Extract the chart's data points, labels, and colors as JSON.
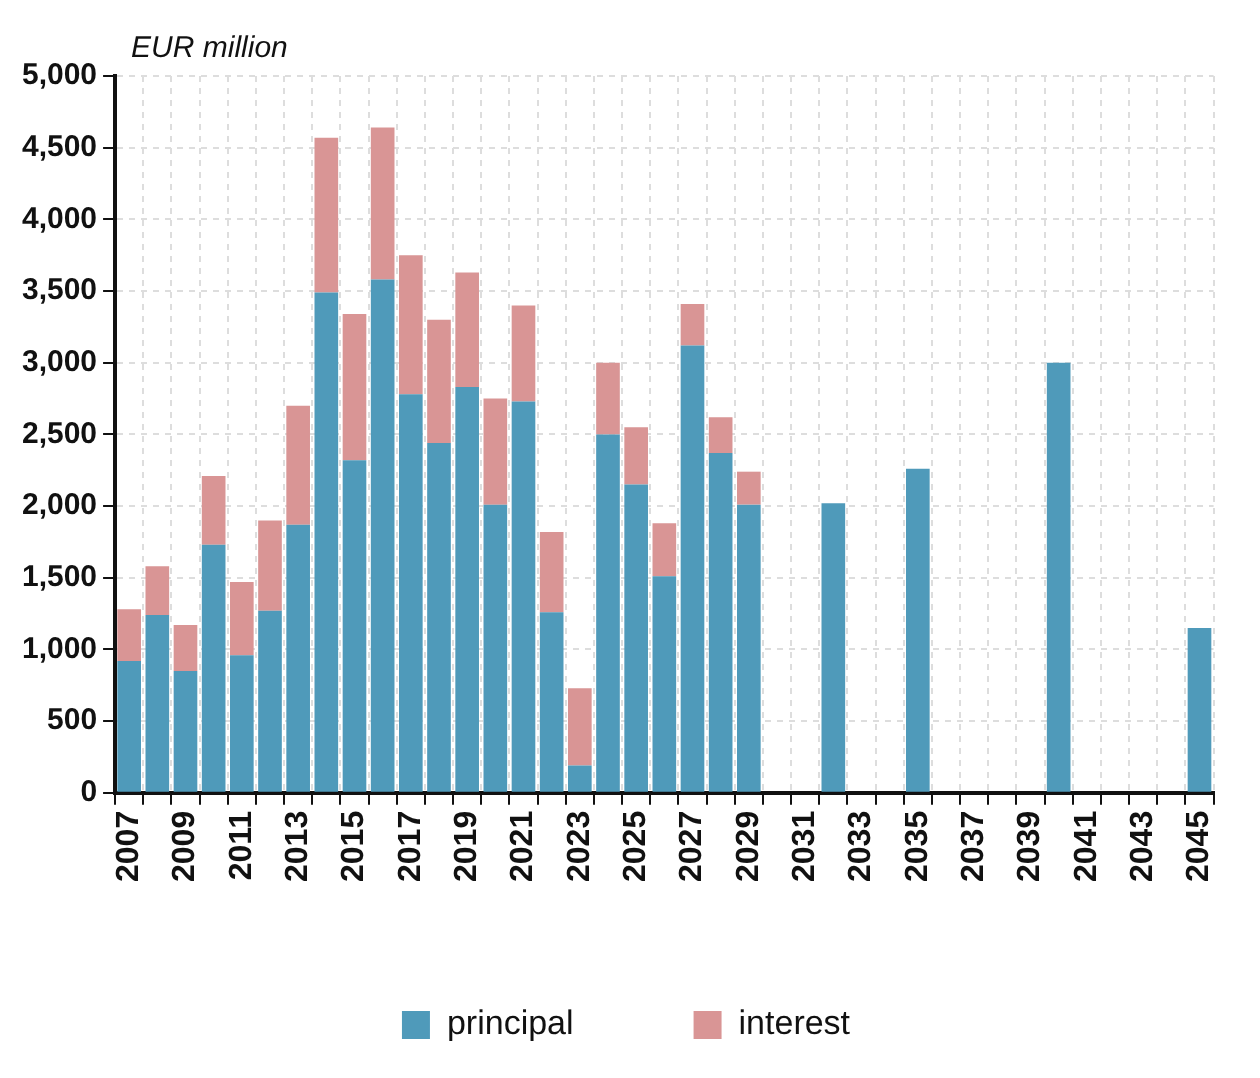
{
  "chart_data": {
    "type": "bar",
    "ylabel": "EUR million",
    "stacked": true,
    "grid": true,
    "legend": "bottom",
    "categories": [
      "2007",
      null,
      "2009",
      null,
      "2011",
      null,
      "2013",
      null,
      "2015",
      null,
      "2017",
      null,
      "2019",
      null,
      "2021",
      null,
      "2023",
      null,
      "2025",
      null,
      "2027",
      null,
      "2029",
      null,
      "2031",
      null,
      "2033",
      null,
      "2035",
      null,
      "2037",
      null,
      "2039",
      null,
      "2041",
      null,
      "2043",
      null,
      "2045"
    ],
    "series": [
      {
        "name": "principal",
        "color": "#4f9aba",
        "values": [
          920,
          1240,
          850,
          1730,
          960,
          1270,
          1870,
          3490,
          2320,
          3580,
          2780,
          2440,
          2830,
          2010,
          2730,
          1260,
          190,
          2500,
          2150,
          1510,
          3120,
          2370,
          2010,
          null,
          null,
          2020,
          null,
          null,
          2260,
          null,
          null,
          null,
          null,
          3000,
          null,
          null,
          null,
          null,
          1150
        ]
      },
      {
        "name": "interest",
        "color": "#d99595",
        "values": [
          360,
          340,
          320,
          480,
          510,
          630,
          830,
          1080,
          1020,
          1060,
          970,
          860,
          800,
          740,
          670,
          560,
          540,
          500,
          400,
          370,
          290,
          250,
          230,
          null,
          null,
          null,
          null,
          null,
          null,
          null,
          null,
          null,
          null,
          null,
          null,
          null,
          null,
          null,
          null
        ]
      }
    ],
    "ylim": [
      0,
      5000
    ],
    "yticks": [
      {
        "value": 0,
        "label": "0"
      },
      {
        "value": 500,
        "label": "500"
      },
      {
        "value": 1000,
        "label": "1,000"
      },
      {
        "value": 1500,
        "label": "1,500"
      },
      {
        "value": 2000,
        "label": "2,000"
      },
      {
        "value": 2500,
        "label": "2,500"
      },
      {
        "value": 3000,
        "label": "3,000"
      },
      {
        "value": 3500,
        "label": "3,500"
      },
      {
        "value": 4000,
        "label": "4,000"
      },
      {
        "value": 4500,
        "label": "4,500"
      },
      {
        "value": 5000,
        "label": "5,000"
      }
    ]
  }
}
